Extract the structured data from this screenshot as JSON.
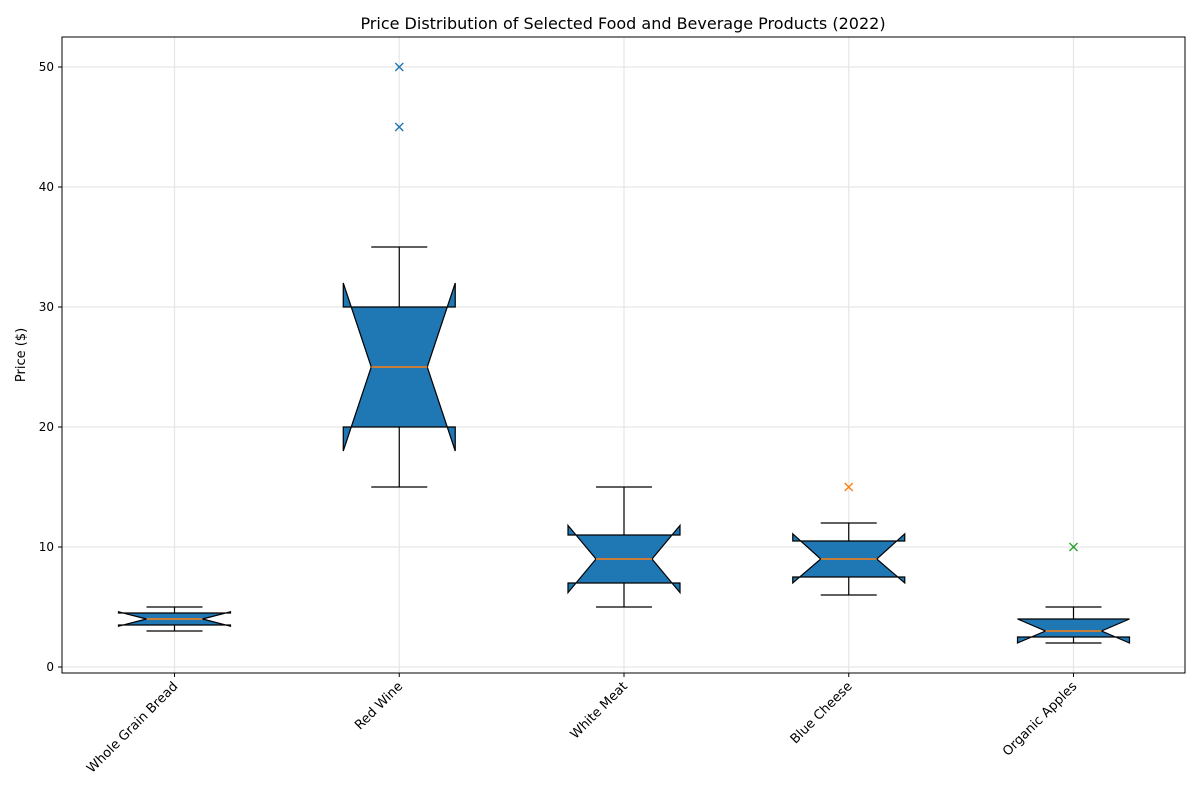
{
  "chart_data": {
    "type": "boxplot",
    "title": "Price Distribution of Selected Food and Beverage Products (2022)",
    "xlabel": "",
    "ylabel": "Price ($)",
    "ylim": [
      -0.5,
      52.5
    ],
    "yticks": [
      0,
      10,
      20,
      30,
      40,
      50
    ],
    "grid": true,
    "notched": true,
    "box_color": "#1f77b4",
    "median_color": "#ff7f0e",
    "categories": [
      "Whole Grain Bread",
      "Red Wine",
      "White Meat",
      "Blue Cheese",
      "Organic Apples"
    ],
    "boxes": [
      {
        "whisker_low": 3,
        "q1": 3.5,
        "median": 4,
        "q3": 4.5,
        "whisker_high": 5,
        "notch_low": 3.4,
        "notch_high": 4.6,
        "outliers": [],
        "outlier_color": "#1f77b4"
      },
      {
        "whisker_low": 15,
        "q1": 20,
        "median": 25,
        "q3": 30,
        "whisker_high": 35,
        "notch_low": 18,
        "notch_high": 32,
        "outliers": [
          45,
          50
        ],
        "outlier_color": "#1f77b4"
      },
      {
        "whisker_low": 5,
        "q1": 7,
        "median": 9,
        "q3": 11,
        "whisker_high": 15,
        "notch_low": 6.2,
        "notch_high": 11.8,
        "outliers": [],
        "outlier_color": "#1f77b4"
      },
      {
        "whisker_low": 6,
        "q1": 7.5,
        "median": 9,
        "q3": 10.5,
        "whisker_high": 12,
        "notch_low": 7,
        "notch_high": 11.1,
        "outliers": [
          15
        ],
        "outlier_color": "#ff7f0e"
      },
      {
        "whisker_low": 2,
        "q1": 2.5,
        "median": 3,
        "q3": 4,
        "whisker_high": 5,
        "notch_low": 2,
        "notch_high": 4,
        "outliers": [
          10
        ],
        "outlier_color": "#2ca02c"
      }
    ]
  }
}
